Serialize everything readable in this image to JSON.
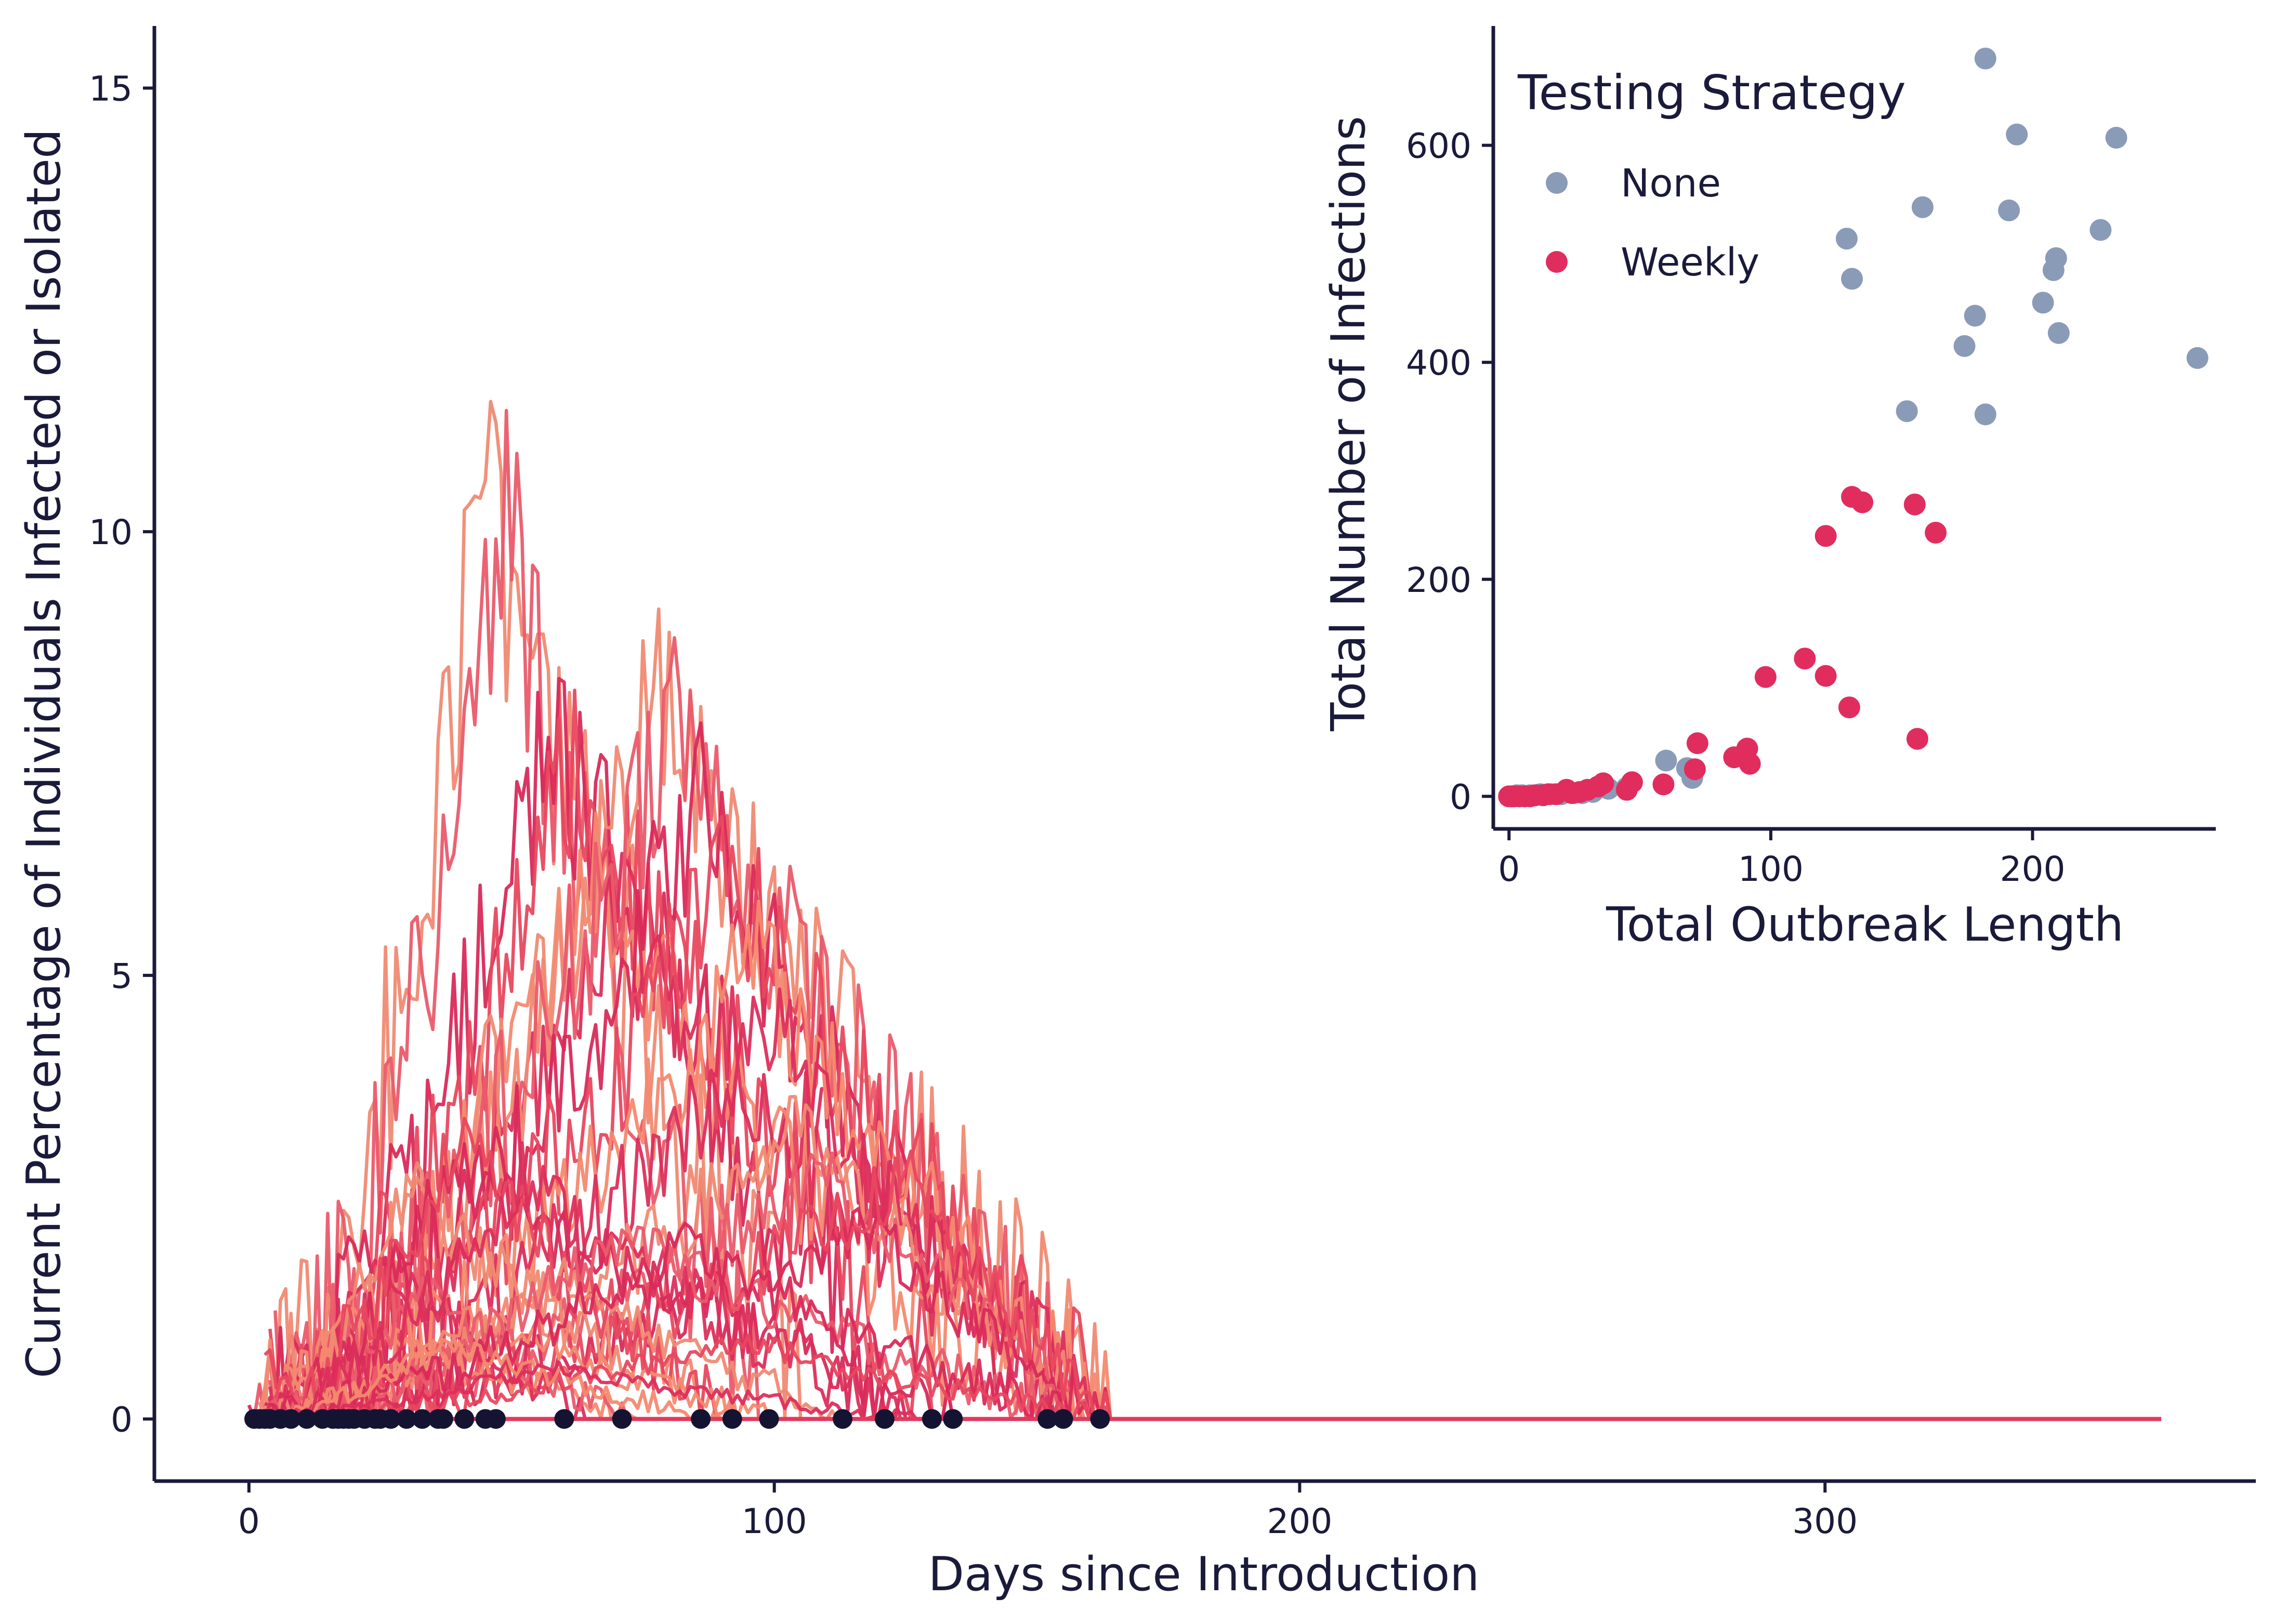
{
  "chart_data": [
    {
      "type": "line",
      "xlabel": "Days since Introduction",
      "ylabel": "Current Percentage of Individuals Infected or Isolated",
      "xlim": [
        -18,
        382
      ],
      "ylim": [
        -0.7,
        15.7
      ],
      "xticks": [
        0,
        100,
        200,
        300
      ],
      "yticks": [
        0,
        5,
        10,
        15
      ],
      "grid": false,
      "colors": [
        "#f08a73",
        "#ea5b6c",
        "#d92a5a",
        "#e8485f",
        "#f4896f",
        "#dc2f5c"
      ],
      "end_marker_color": "#141432",
      "series_count": 30,
      "peak_days": [
        45,
        49,
        58,
        62,
        66,
        70,
        78,
        81,
        86,
        92,
        97,
        100,
        105,
        110,
        119,
        126,
        18,
        24,
        30,
        34,
        38,
        40,
        44,
        52,
        60,
        72,
        84,
        95,
        37,
        57
      ],
      "peak_values": [
        10.6,
        10.3,
        8.0,
        7.6,
        6.2,
        6.0,
        8.2,
        8.1,
        7.0,
        6.3,
        5.3,
        4.5,
        3.3,
        2.8,
        2.2,
        2.7,
        1.2,
        1.9,
        2.6,
        1.5,
        2.9,
        3.3,
        1.2,
        2.8,
        1.6,
        2.1,
        2.0,
        0.9,
        0.9,
        0.6
      ],
      "outbreak_end_days": [
        1,
        2,
        3,
        4,
        6,
        8,
        11,
        14,
        16,
        17,
        18,
        19,
        20,
        22,
        24,
        25,
        27,
        30,
        33,
        36,
        37,
        41,
        45,
        47,
        60,
        71,
        86,
        92,
        99,
        113,
        121,
        130,
        134,
        152,
        155,
        162
      ],
      "x_end": 364
    },
    {
      "type": "scatter",
      "xlabel": "Total Outbreak Length",
      "ylabel": "Total Number of Infections",
      "xlim": [
        -6,
        270
      ],
      "ylim": [
        -30,
        710
      ],
      "xticks": [
        0,
        100,
        200
      ],
      "yticks": [
        0,
        200,
        400,
        600
      ],
      "grid": false,
      "legend": {
        "title": "Testing Strategy",
        "position": "top-left"
      },
      "series": [
        {
          "name": "None",
          "color": "#8a9bb8",
          "points": [
            [
              182,
              680
            ],
            [
              194,
              610
            ],
            [
              232,
              607
            ],
            [
              158,
              543
            ],
            [
              191,
              540
            ],
            [
              226,
              522
            ],
            [
              129,
              514
            ],
            [
              209,
              496
            ],
            [
              208,
              485
            ],
            [
              131,
              477
            ],
            [
              204,
              455
            ],
            [
              178,
              443
            ],
            [
              210,
              427
            ],
            [
              174,
              415
            ],
            [
              263,
              404
            ],
            [
              152,
              355
            ],
            [
              182,
              352
            ],
            [
              60,
              33
            ],
            [
              68,
              26
            ],
            [
              70,
              17
            ],
            [
              45,
              8
            ],
            [
              38,
              7
            ],
            [
              32,
              4
            ],
            [
              28,
              3
            ],
            [
              25,
              3
            ],
            [
              20,
              2
            ],
            [
              16,
              2
            ],
            [
              12,
              2
            ],
            [
              8,
              1
            ],
            [
              5,
              1
            ],
            [
              3,
              1
            ],
            [
              1,
              0
            ]
          ]
        },
        {
          "name": "Weekly",
          "color": "#e12d5e",
          "points": [
            [
              131,
              276
            ],
            [
              135,
              271
            ],
            [
              155,
              269
            ],
            [
              163,
              243
            ],
            [
              121,
              240
            ],
            [
              113,
              127
            ],
            [
              121,
              111
            ],
            [
              98,
              110
            ],
            [
              130,
              82
            ],
            [
              156,
              53
            ],
            [
              72,
              49
            ],
            [
              91,
              44
            ],
            [
              86,
              36
            ],
            [
              92,
              30
            ],
            [
              71,
              25
            ],
            [
              59,
              11
            ],
            [
              47,
              13
            ],
            [
              45,
              6
            ],
            [
              36,
              12
            ],
            [
              34,
              9
            ],
            [
              30,
              6
            ],
            [
              27,
              4
            ],
            [
              24,
              3
            ],
            [
              22,
              6
            ],
            [
              18,
              2
            ],
            [
              15,
              2
            ],
            [
              13,
              1
            ],
            [
              10,
              1
            ],
            [
              8,
              0
            ],
            [
              6,
              0
            ],
            [
              4,
              0
            ],
            [
              2,
              0
            ],
            [
              1,
              0
            ],
            [
              0,
              0
            ]
          ]
        }
      ]
    }
  ]
}
